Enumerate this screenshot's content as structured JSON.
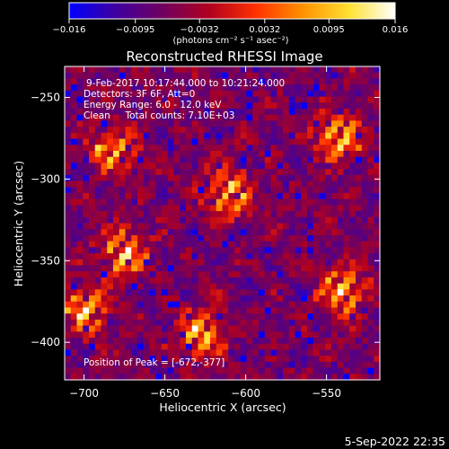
{
  "chart_data": {
    "type": "heatmap",
    "title": "Reconstructed RHESSI Image",
    "xlabel": "Heliocentric X (arcsec)",
    "ylabel": "Heliocentric Y (arcsec)",
    "xlim": [
      -712,
      -517
    ],
    "ylim": [
      -423,
      -231
    ],
    "x_ticks": [
      -700,
      -650,
      -600,
      -550
    ],
    "y_ticks": [
      -250,
      -300,
      -350,
      -400
    ],
    "x_tick_labels": [
      "−700",
      "−650",
      "−600",
      "−550"
    ],
    "y_tick_labels": [
      "−250",
      "−300",
      "−350",
      "−400"
    ],
    "colorbar": {
      "range": [
        -0.016,
        0.016
      ],
      "ticks": [
        -0.016,
        -0.0095,
        -0.0032,
        0.0032,
        0.0095,
        0.016
      ],
      "tick_labels": [
        "−0.016",
        "−0.0095",
        "−0.0032",
        "0.0032",
        "0.0095",
        "0.016"
      ],
      "units_label": "(photons cm⁻² s⁻¹ asec⁻²)",
      "colors": [
        "#0000ff",
        "#4000a0",
        "#700060",
        "#b00020",
        "#ff3000",
        "#ff9000",
        "#ffe030",
        "#ffffff"
      ]
    },
    "annotations": [
      "9-Feb-2017 10:17:44.000 to 10:21:24.000",
      "Detectors: 3F 6F, Att=0",
      "Energy Range: 6.0 - 12.0 keV",
      "Clean     Total counts: 7.10E+03",
      "Position of Peak = [-672,-377]"
    ],
    "peak_position": [
      -672,
      -377
    ],
    "bright_sources": [
      {
        "x": -675,
        "y": -345
      },
      {
        "x": -683,
        "y": -282
      },
      {
        "x": -610,
        "y": -308
      },
      {
        "x": -627,
        "y": -395
      },
      {
        "x": -542,
        "y": -275
      },
      {
        "x": -540,
        "y": -368
      },
      {
        "x": -700,
        "y": -380
      }
    ]
  },
  "footer": {
    "date": "5-Sep-2022 22:35"
  }
}
